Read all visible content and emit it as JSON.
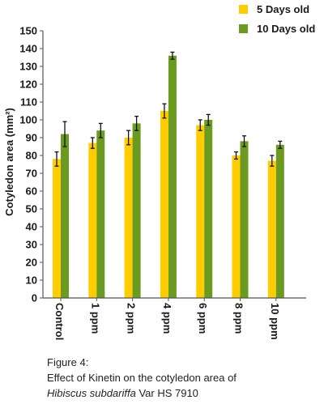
{
  "chart_data": {
    "type": "bar",
    "categories": [
      "Control",
      "1 ppm",
      "2 ppm",
      "4 ppm",
      "6 ppm",
      "8 ppm",
      "10 ppm"
    ],
    "series": [
      {
        "name": "5 Days old",
        "color": "#ffcc00",
        "values": [
          78,
          87,
          90,
          105,
          97,
          80,
          77
        ],
        "errors": [
          4,
          3,
          4,
          4,
          3,
          2,
          3
        ]
      },
      {
        "name": "10 Days old",
        "color": "#6a9a1f",
        "values": [
          92,
          94,
          98,
          136,
          100,
          88,
          86
        ],
        "errors": [
          7,
          4,
          4,
          2,
          3,
          3,
          2
        ]
      }
    ],
    "ylabel": "Cotyledon area  (mm²)",
    "xlabel": "",
    "ylim": [
      0,
      150
    ],
    "yticks": [
      0,
      10,
      20,
      30,
      40,
      50,
      60,
      70,
      80,
      90,
      100,
      110,
      120,
      130,
      140,
      150
    ],
    "grid": false,
    "legend_position": "top-right"
  },
  "caption": {
    "line1": "Figure 4:",
    "line2": "Effect of Kinetin on the cotyledon area of",
    "line3_italic": "Hibiscus subdariffa",
    "line3_rest": " Var HS 7910"
  }
}
